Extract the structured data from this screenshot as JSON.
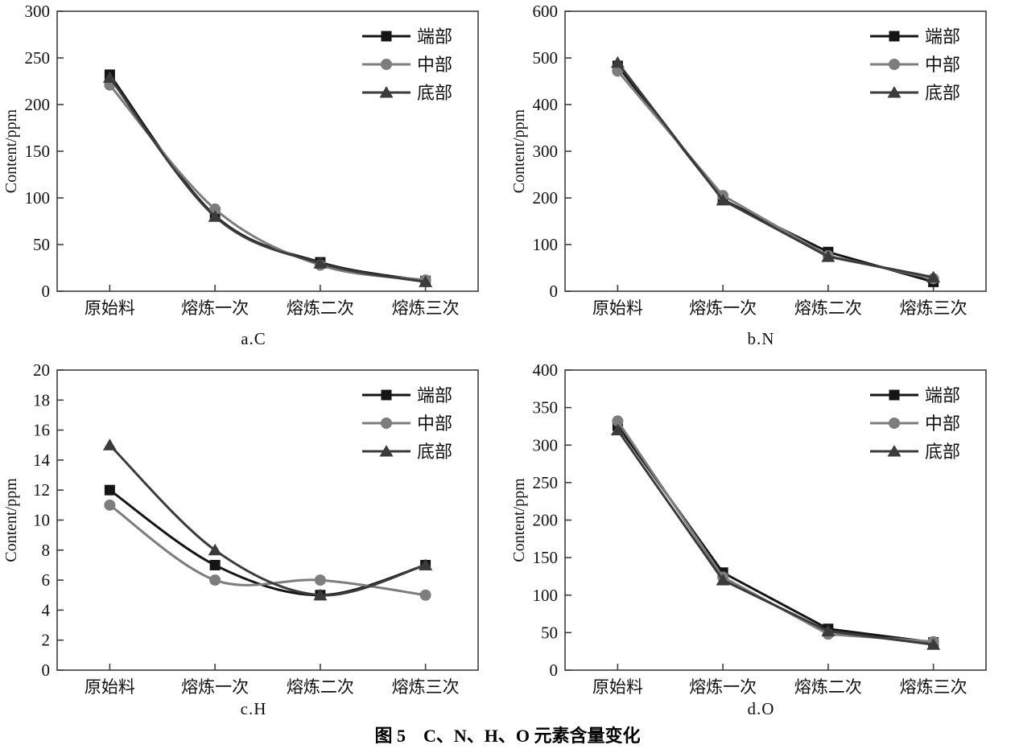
{
  "page": {
    "caption": "图 5　C、N、H、O 元素含量变化"
  },
  "colors": {
    "series_end": "#151515",
    "series_mid": "#7d7d7d",
    "series_bottom": "#3b3b3b",
    "axis": "#3f3f3f",
    "text": "#111111"
  },
  "legend": {
    "position": "top-right-inside",
    "entries": [
      "端部",
      "中部",
      "底部"
    ]
  },
  "chart_data": [
    {
      "type": "line",
      "subtitle": "a.C",
      "ylabel": "Content/ppm",
      "xlabel": "",
      "categories": [
        "原始料",
        "熔炼一次",
        "熔炼二次",
        "熔炼三次"
      ],
      "ylim": [
        0,
        300
      ],
      "ytick_step": 50,
      "grid": false,
      "smooth": true,
      "series": [
        {
          "name": "端部",
          "marker": "square",
          "color": "#151515",
          "values": [
            232,
            81,
            31,
            11
          ]
        },
        {
          "name": "中部",
          "marker": "circle",
          "color": "#7d7d7d",
          "values": [
            221,
            88,
            28,
            12
          ]
        },
        {
          "name": "底部",
          "marker": "triangle",
          "color": "#3b3b3b",
          "values": [
            229,
            80,
            30,
            10
          ]
        }
      ]
    },
    {
      "type": "line",
      "subtitle": "b.N",
      "ylabel": "Content/ppm",
      "xlabel": "",
      "categories": [
        "原始料",
        "熔炼一次",
        "熔炼二次",
        "熔炼三次"
      ],
      "ylim": [
        0,
        600
      ],
      "ytick_step": 100,
      "grid": false,
      "smooth": false,
      "series": [
        {
          "name": "端部",
          "marker": "square",
          "color": "#151515",
          "values": [
            483,
            196,
            84,
            20
          ]
        },
        {
          "name": "中部",
          "marker": "circle",
          "color": "#7d7d7d",
          "values": [
            472,
            205,
            76,
            27
          ]
        },
        {
          "name": "底部",
          "marker": "triangle",
          "color": "#3b3b3b",
          "values": [
            490,
            195,
            74,
            30
          ]
        }
      ]
    },
    {
      "type": "line",
      "subtitle": "c.H",
      "ylabel": "Content/ppm",
      "xlabel": "",
      "categories": [
        "原始料",
        "熔炼一次",
        "熔炼二次",
        "熔炼三次"
      ],
      "ylim": [
        0,
        20
      ],
      "ytick_step": 2,
      "grid": false,
      "smooth": true,
      "series": [
        {
          "name": "端部",
          "marker": "square",
          "color": "#151515",
          "values": [
            12,
            7,
            5,
            7
          ]
        },
        {
          "name": "中部",
          "marker": "circle",
          "color": "#7d7d7d",
          "values": [
            11,
            6,
            6,
            5
          ]
        },
        {
          "name": "底部",
          "marker": "triangle",
          "color": "#3b3b3b",
          "values": [
            15,
            8,
            5,
            7
          ]
        }
      ]
    },
    {
      "type": "line",
      "subtitle": "d.O",
      "ylabel": "Content/ppm",
      "xlabel": "",
      "categories": [
        "原始料",
        "熔炼一次",
        "熔炼二次",
        "熔炼三次"
      ],
      "ylim": [
        0,
        400
      ],
      "ytick_step": 50,
      "grid": false,
      "smooth": false,
      "series": [
        {
          "name": "端部",
          "marker": "square",
          "color": "#151515",
          "values": [
            326,
            130,
            55,
            37
          ]
        },
        {
          "name": "中部",
          "marker": "circle",
          "color": "#7d7d7d",
          "values": [
            332,
            124,
            48,
            38
          ]
        },
        {
          "name": "底部",
          "marker": "triangle",
          "color": "#3b3b3b",
          "values": [
            320,
            120,
            52,
            34
          ]
        }
      ]
    }
  ]
}
